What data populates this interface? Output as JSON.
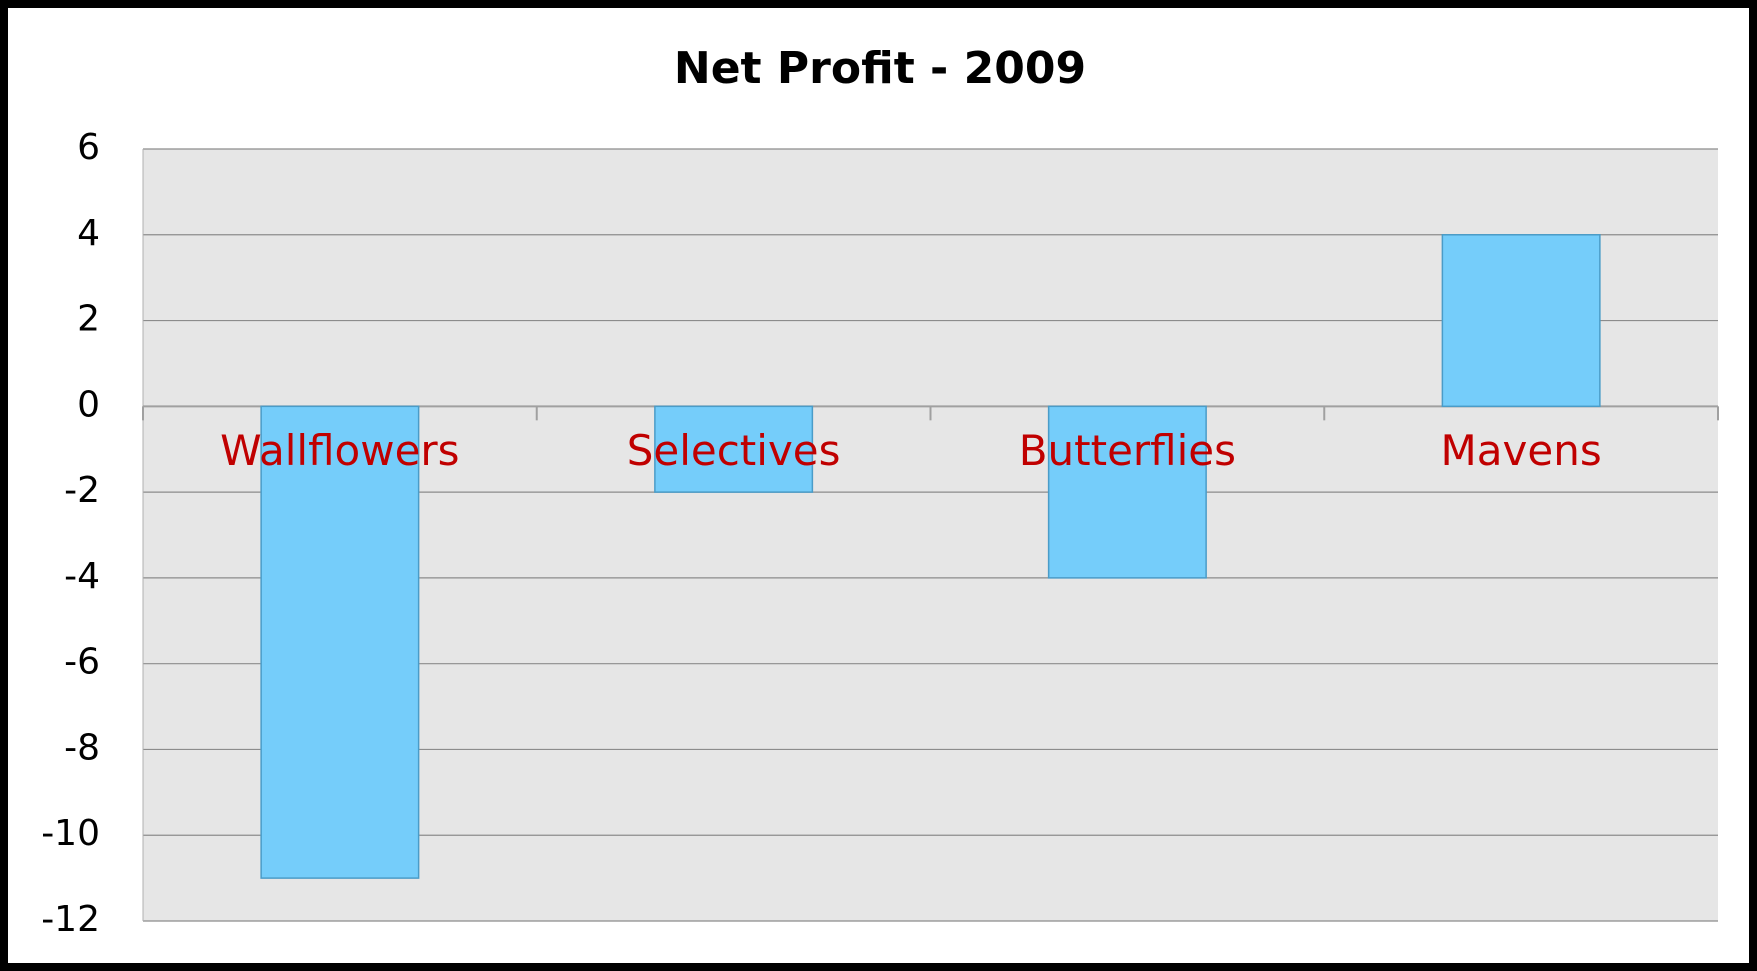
{
  "chart_data": {
    "type": "bar",
    "title": "Net Profit - 2009",
    "categories": [
      "Wallflowers",
      "Selectives",
      "Butterflies",
      "Mavens"
    ],
    "values": [
      -11,
      -2,
      -4,
      4
    ],
    "color": "#75cdfa",
    "ylim": [
      -12,
      6
    ],
    "yticks": [
      -12,
      -10,
      -8,
      -6,
      -4,
      -2,
      0,
      2,
      4,
      6
    ],
    "grid": true
  }
}
